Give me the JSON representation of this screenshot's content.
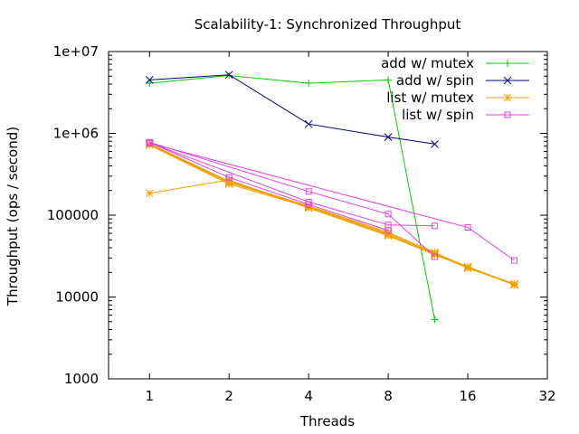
{
  "chart_data": {
    "type": "line",
    "title": "Scalability-1: Synchronized Throughput",
    "xlabel": "Threads",
    "ylabel": "Throughput (ops / second)",
    "x_scale": "log2",
    "y_scale": "log10",
    "xlim": [
      0.7,
      32
    ],
    "ylim": [
      1000,
      10000000
    ],
    "x_ticks": [
      1,
      2,
      4,
      8,
      16,
      32
    ],
    "x_tick_labels": [
      "1",
      "2",
      "4",
      "8",
      "16",
      "32"
    ],
    "y_ticks": [
      1000,
      10000,
      100000,
      1000000,
      10000000
    ],
    "y_tick_labels": [
      "1000",
      "10000",
      "100000",
      "1e+06",
      "1e+07"
    ],
    "grid": false,
    "legend_position": "top-right",
    "series": [
      {
        "name": "add w/ mutex",
        "color": "#00cc00",
        "marker": "plus",
        "runs": [
          [
            [
              1,
              4100000
            ],
            [
              2,
              5100000
            ],
            [
              4,
              4100000
            ],
            [
              8,
              4500000
            ],
            [
              12,
              5300
            ]
          ]
        ]
      },
      {
        "name": "add w/ spin",
        "color": "#000080",
        "marker": "cross",
        "runs": [
          [
            [
              1,
              4500000
            ],
            [
              2,
              5200000
            ],
            [
              4,
              1300000
            ],
            [
              8,
              900000
            ],
            [
              12,
              740000
            ]
          ]
        ]
      },
      {
        "name": "list w/ mutex",
        "color": "#f0a000",
        "marker": "star",
        "runs": [
          [
            [
              1,
              750000
            ],
            [
              2,
              260000
            ],
            [
              4,
              130000
            ],
            [
              8,
              62000
            ],
            [
              12,
              35000
            ],
            [
              16,
              23000
            ],
            [
              24,
              14500
            ]
          ],
          [
            [
              1,
              720000
            ],
            [
              2,
              240000
            ],
            [
              4,
              125000
            ],
            [
              8,
              58000
            ],
            [
              12,
              33000
            ],
            [
              16,
              23000
            ],
            [
              24,
              14000
            ]
          ],
          [
            [
              1,
              730000
            ],
            [
              2,
              250000
            ],
            [
              4,
              128000
            ],
            [
              8,
              60000
            ],
            [
              12,
              34000
            ],
            [
              16,
              23500
            ],
            [
              24,
              14200
            ]
          ],
          [
            [
              1,
              740000
            ],
            [
              2,
              255000
            ],
            [
              4,
              126000
            ],
            [
              8,
              57000
            ],
            [
              12,
              33500
            ],
            [
              16,
              22500
            ],
            [
              24,
              14300
            ]
          ],
          [
            [
              1,
              185000
            ],
            [
              2,
              270000
            ],
            [
              4,
              122000
            ],
            [
              8,
              56000
            ],
            [
              12,
              33000
            ],
            [
              16,
              23000
            ],
            [
              24,
              14100
            ]
          ]
        ]
      },
      {
        "name": "list w/ spin",
        "color": "#e040e0",
        "marker": "square",
        "runs": [
          [
            [
              1,
              780000
            ],
            [
              4,
              195000
            ],
            [
              8,
              103000
            ],
            [
              12,
              31000
            ]
          ],
          [
            [
              1,
              770000
            ],
            [
              4,
              145000
            ],
            [
              8,
              76000
            ],
            [
              12,
              74000
            ]
          ],
          [
            [
              1,
              760000
            ],
            [
              16,
              71000
            ],
            [
              24,
              28000
            ]
          ],
          [
            [
              1,
              775000
            ],
            [
              2,
              290000
            ],
            [
              4,
              135000
            ],
            [
              8,
              65000
            ]
          ]
        ]
      }
    ]
  }
}
